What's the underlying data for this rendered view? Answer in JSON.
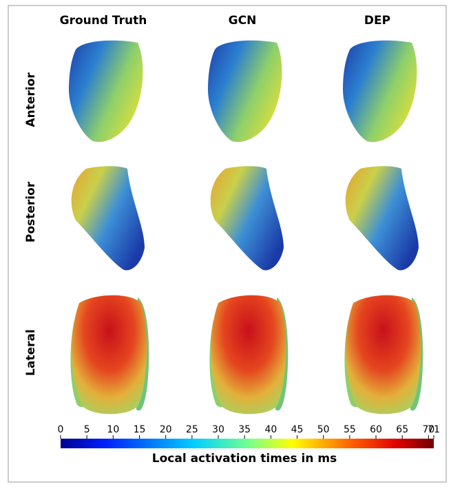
{
  "column_titles": [
    "Ground Truth",
    "GCN",
    "DEP"
  ],
  "row_labels": [
    "Anterior",
    "Posterior",
    "Lateral"
  ],
  "colorbar": {
    "label": "Local activation times in ms",
    "range": [
      0,
      71
    ],
    "ticks": [
      0,
      5,
      10,
      15,
      20,
      25,
      30,
      35,
      40,
      45,
      50,
      55,
      60,
      65,
      70,
      71
    ]
  }
}
